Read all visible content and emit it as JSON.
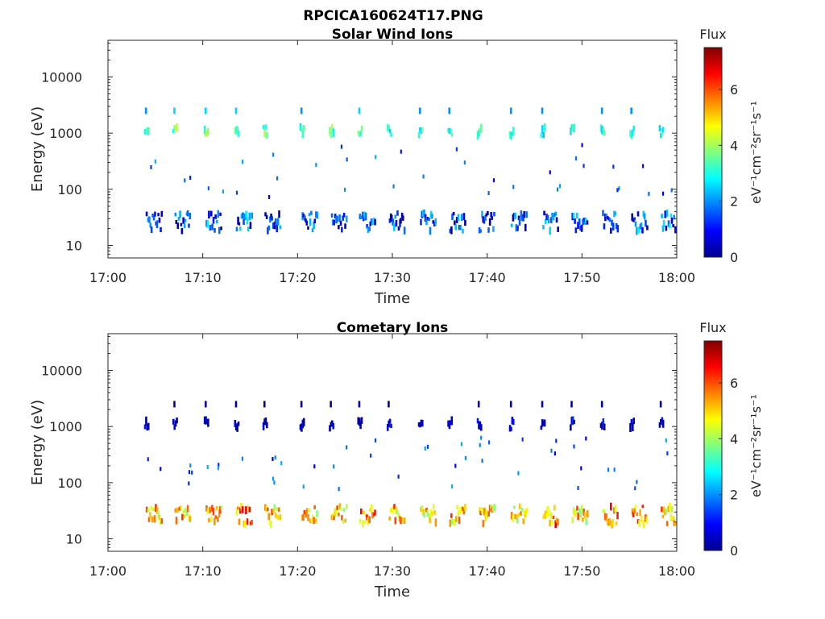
{
  "figure_title": "RPCICA160624T17.PNG",
  "chart_data": [
    {
      "type": "heatmap",
      "title": "Solar Wind Ions",
      "xlabel": "Time",
      "ylabel": "Energy (eV)",
      "x_ticks": [
        "17:00",
        "17:10",
        "17:20",
        "17:30",
        "17:40",
        "17:50",
        "18:00"
      ],
      "xlim_minutes": [
        0,
        60
      ],
      "y_scale": "log",
      "ylim": [
        6,
        45000
      ],
      "y_ticks": [
        {
          "value": 10,
          "label": "10"
        },
        {
          "value": 100,
          "label": "100"
        },
        {
          "value": 1000,
          "label": "1000"
        },
        {
          "value": 10000,
          "label": "10000"
        }
      ],
      "colorbar": {
        "title": "Flux",
        "unit": "eV⁻¹cm⁻²sr⁻¹s⁻¹",
        "range": [
          0,
          7.5
        ],
        "ticks": [
          "0",
          "2",
          "4",
          "6"
        ],
        "colormap": "jet"
      },
      "sweep_start_minutes": [
        4.0,
        7.0,
        10.3,
        13.5,
        16.5,
        20.4,
        23.5,
        26.5,
        29.6,
        32.9,
        36.0,
        39.1,
        42.5,
        45.8,
        48.9,
        52.1,
        55.2,
        58.3
      ],
      "band_flux": {
        "1000eV": [
          3.0,
          3.5,
          3.5,
          3.5,
          3.5,
          3.0,
          3.5,
          3.5,
          3.0,
          3.0,
          3.0,
          3.0,
          3.0,
          3.0,
          3.0,
          3.0,
          3.0,
          3.0
        ],
        "25eV": [
          1.5,
          1.2,
          1.5,
          1.5,
          1.2,
          1.5,
          1.5,
          1.5,
          1.2,
          1.5,
          1.2,
          1.2,
          1.2,
          1.5,
          1.5,
          1.5,
          1.5,
          1.5
        ]
      }
    },
    {
      "type": "heatmap",
      "title": "Cometary Ions",
      "xlabel": "Time",
      "ylabel": "Energy (eV)",
      "x_ticks": [
        "17:00",
        "17:10",
        "17:20",
        "17:30",
        "17:40",
        "17:50",
        "18:00"
      ],
      "xlim_minutes": [
        0,
        60
      ],
      "y_scale": "log",
      "ylim": [
        6,
        45000
      ],
      "y_ticks": [
        {
          "value": 10,
          "label": "10"
        },
        {
          "value": 100,
          "label": "100"
        },
        {
          "value": 1000,
          "label": "1000"
        },
        {
          "value": 10000,
          "label": "10000"
        }
      ],
      "colorbar": {
        "title": "Flux",
        "unit": "eV⁻¹cm⁻²sr⁻¹s⁻¹",
        "range": [
          0,
          7.5
        ],
        "ticks": [
          "0",
          "2",
          "4",
          "6"
        ],
        "colormap": "jet"
      },
      "sweep_start_minutes": [
        4.0,
        7.0,
        10.3,
        13.5,
        16.5,
        20.4,
        23.5,
        26.5,
        29.6,
        32.9,
        36.0,
        39.1,
        42.5,
        45.8,
        48.9,
        52.1,
        55.2,
        58.3
      ],
      "band_flux": {
        "1000eV": [
          0.4,
          0.4,
          0.4,
          0.4,
          0.4,
          0.4,
          0.4,
          0.4,
          0.4,
          0.4,
          0.4,
          0.6,
          0.8,
          0.6,
          0.6,
          0.6,
          0.6,
          0.6
        ],
        "25eV": [
          5.0,
          5.0,
          5.0,
          5.5,
          5.0,
          5.0,
          5.0,
          5.5,
          5.0,
          5.0,
          5.0,
          5.0,
          5.0,
          5.5,
          5.0,
          5.5,
          5.5,
          5.0
        ]
      }
    }
  ]
}
